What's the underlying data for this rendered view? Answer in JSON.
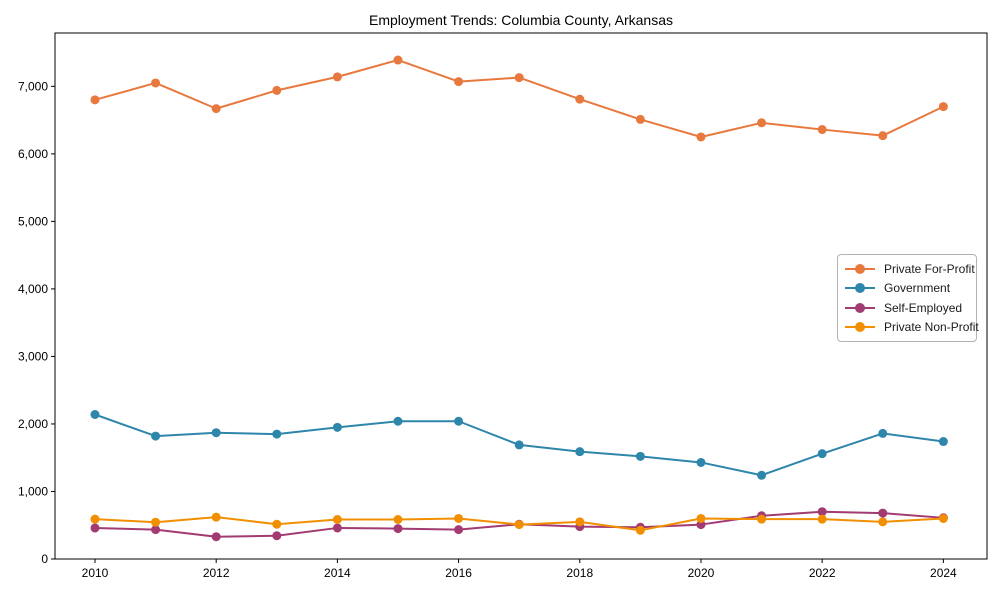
{
  "chart_data": {
    "type": "line",
    "title": "Employment Trends: Columbia County, Arkansas",
    "xlabel": "",
    "ylabel": "",
    "x": [
      2010,
      2011,
      2012,
      2013,
      2014,
      2015,
      2016,
      2017,
      2018,
      2019,
      2020,
      2021,
      2022,
      2023,
      2024
    ],
    "series": [
      {
        "name": "Private For-Profit",
        "color": "#e8793e",
        "values": [
          6800,
          7050,
          6670,
          6940,
          7140,
          7390,
          7070,
          7130,
          6810,
          6510,
          6250,
          6460,
          6360,
          6270,
          6700
        ]
      },
      {
        "name": "Government",
        "color": "#2e86ab",
        "values": [
          2140,
          1820,
          1870,
          1850,
          1950,
          2040,
          2040,
          1690,
          1590,
          1520,
          1430,
          1240,
          1560,
          1860,
          1740
        ]
      },
      {
        "name": "Self-Employed",
        "color": "#a23b72",
        "values": [
          460,
          435,
          330,
          345,
          460,
          450,
          435,
          515,
          480,
          470,
          510,
          640,
          700,
          680,
          610
        ]
      },
      {
        "name": "Private Non-Profit",
        "color": "#f18f01",
        "values": [
          590,
          545,
          620,
          515,
          585,
          585,
          600,
          510,
          550,
          425,
          600,
          590,
          590,
          550,
          600
        ]
      }
    ],
    "xticks": [
      2010,
      2012,
      2014,
      2016,
      2018,
      2020,
      2022,
      2024
    ],
    "yticks": [
      0,
      1000,
      2000,
      3000,
      4000,
      5000,
      6000,
      7000
    ],
    "ytick_labels": [
      "0",
      "1,000",
      "2,000",
      "3,000",
      "4,000",
      "5,000",
      "6,000",
      "7,000"
    ],
    "xlim": [
      2009.34,
      2024.72
    ],
    "ylim": [
      0,
      7790
    ],
    "grid": false,
    "legend_position": "center-right",
    "marker": "circle",
    "line_width": 2,
    "marker_radius": 4.5,
    "colors": {
      "background": "#ffffff",
      "axis": "#000000",
      "tick_text": "#000000",
      "legend_border": "#b3b3b3"
    }
  }
}
